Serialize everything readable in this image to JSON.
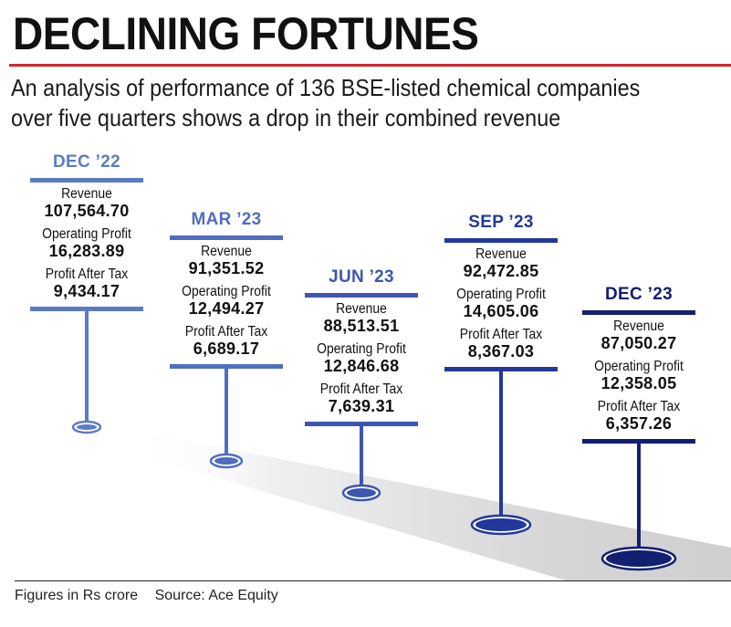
{
  "header": {
    "title": "DECLINING FORTUNES",
    "subtitle_line1": "An analysis of performance of 136 BSE-listed chemical companies",
    "subtitle_line2": "over five  quarters shows a drop in their combined revenue"
  },
  "colors": {
    "accent_rule": "#d7262e",
    "q1": "#5b7bc6",
    "q2": "#4f6ebf",
    "q3": "#3d57b0",
    "q4": "#22389b",
    "q5": "#131f70",
    "ground": "#d9d9d9"
  },
  "labels": {
    "revenue": "Revenue",
    "operating_profit": "Operating Profit",
    "profit_after_tax": "Profit After Tax"
  },
  "chart_data": {
    "type": "table",
    "title": "DECLINING FORTUNES",
    "categories": [
      "DEC '22",
      "MAR '23",
      "JUN '23",
      "SEP '23",
      "DEC '23"
    ],
    "series": [
      {
        "name": "Revenue",
        "values": [
          107564.7,
          91351.52,
          88513.51,
          92472.85,
          87050.27
        ]
      },
      {
        "name": "Operating Profit",
        "values": [
          16283.89,
          12494.27,
          12846.68,
          14605.06,
          12358.05
        ]
      },
      {
        "name": "Profit After Tax",
        "values": [
          9434.17,
          6689.17,
          7639.31,
          8367.03,
          6357.26
        ]
      }
    ],
    "quarters": [
      {
        "label": "DEC ’22",
        "revenue": "107,564.70",
        "operating_profit": "16,283.89",
        "profit_after_tax": "9,434.17"
      },
      {
        "label": "MAR ’23",
        "revenue": "91,351.52",
        "operating_profit": "12,494.27",
        "profit_after_tax": "6,689.17"
      },
      {
        "label": "JUN ’23",
        "revenue": "88,513.51",
        "operating_profit": "12,846.68",
        "profit_after_tax": "7,639.31"
      },
      {
        "label": "SEP ’23",
        "revenue": "92,472.85",
        "operating_profit": "14,605.06",
        "profit_after_tax": "8,367.03"
      },
      {
        "label": "DEC ’23",
        "revenue": "87,050.27",
        "operating_profit": "12,358.05",
        "profit_after_tax": "6,357.26"
      }
    ],
    "units": "Rs crore"
  },
  "footer": {
    "note": "Figures in Rs crore",
    "source": "Source: Ace Equity"
  }
}
